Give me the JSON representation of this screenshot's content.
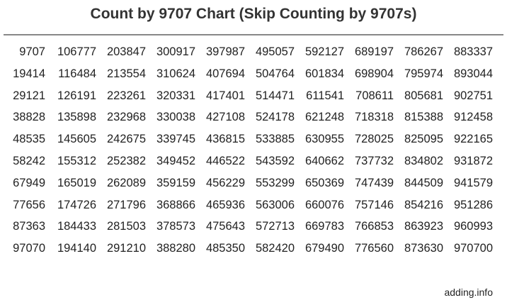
{
  "title": "Count by 9707 Chart (Skip Counting by 9707s)",
  "footer": "adding.info",
  "table": {
    "rows": [
      [
        "9707",
        "106777",
        "203847",
        "300917",
        "397987",
        "495057",
        "592127",
        "689197",
        "786267",
        "883337"
      ],
      [
        "19414",
        "116484",
        "213554",
        "310624",
        "407694",
        "504764",
        "601834",
        "698904",
        "795974",
        "893044"
      ],
      [
        "29121",
        "126191",
        "223261",
        "320331",
        "417401",
        "514471",
        "611541",
        "708611",
        "805681",
        "902751"
      ],
      [
        "38828",
        "135898",
        "232968",
        "330038",
        "427108",
        "524178",
        "621248",
        "718318",
        "815388",
        "912458"
      ],
      [
        "48535",
        "145605",
        "242675",
        "339745",
        "436815",
        "533885",
        "630955",
        "728025",
        "825095",
        "922165"
      ],
      [
        "58242",
        "155312",
        "252382",
        "349452",
        "446522",
        "543592",
        "640662",
        "737732",
        "834802",
        "931872"
      ],
      [
        "67949",
        "165019",
        "262089",
        "359159",
        "456229",
        "553299",
        "650369",
        "747439",
        "844509",
        "941579"
      ],
      [
        "77656",
        "174726",
        "271796",
        "368866",
        "465936",
        "563006",
        "660076",
        "757146",
        "854216",
        "951286"
      ],
      [
        "87363",
        "184433",
        "281503",
        "378573",
        "475643",
        "572713",
        "669783",
        "766853",
        "863923",
        "960993"
      ],
      [
        "97070",
        "194140",
        "291210",
        "388280",
        "485350",
        "582420",
        "679490",
        "776560",
        "873630",
        "970700"
      ]
    ]
  }
}
